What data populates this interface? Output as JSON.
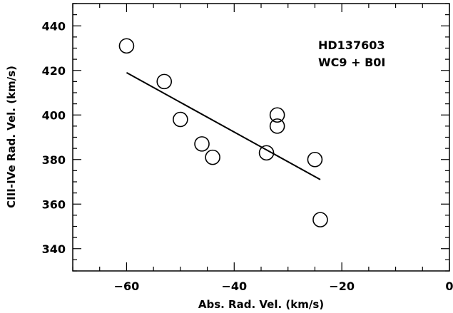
{
  "chart_data": {
    "type": "scatter",
    "xlabel": "Abs. Rad. Vel.  (km/s)",
    "ylabel": "CIII-IVe Rad. Vel. (km/s)",
    "xlim": [
      -70,
      0
    ],
    "ylim": [
      330,
      450
    ],
    "xticks": [
      -60,
      -40,
      -20,
      0
    ],
    "xtick_labels": [
      "−60",
      "−40",
      "−20",
      "0"
    ],
    "yticks": [
      340,
      360,
      380,
      400,
      420,
      440
    ],
    "ytick_labels": [
      "340",
      "360",
      "380",
      "400",
      "420",
      "440"
    ],
    "grid": false,
    "annotations": [
      "HD137603",
      "WC9 + B0I"
    ],
    "points": [
      {
        "x": -60,
        "y": 431
      },
      {
        "x": -53,
        "y": 415
      },
      {
        "x": -50,
        "y": 398
      },
      {
        "x": -46,
        "y": 387
      },
      {
        "x": -44,
        "y": 381
      },
      {
        "x": -34,
        "y": 383
      },
      {
        "x": -32,
        "y": 400
      },
      {
        "x": -32,
        "y": 395
      },
      {
        "x": -25,
        "y": 380
      },
      {
        "x": -24,
        "y": 353
      }
    ],
    "fit_line": {
      "x": [
        -60,
        -24
      ],
      "y": [
        419,
        371
      ]
    },
    "marker": "open-circle"
  }
}
